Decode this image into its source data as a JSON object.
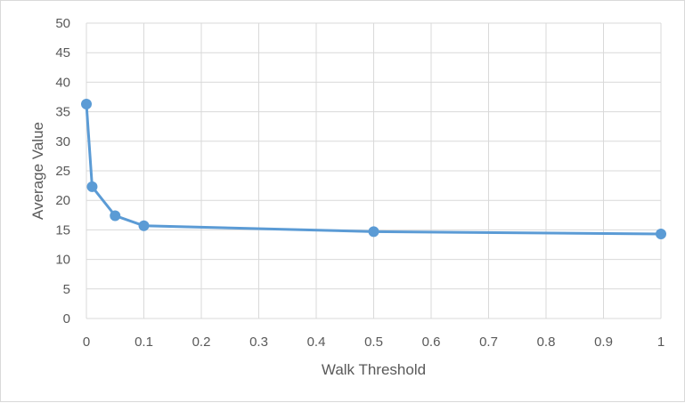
{
  "chart_data": {
    "type": "line",
    "title": "",
    "xlabel": "Walk Threshold",
    "ylabel": "Average Value",
    "xlim": [
      0,
      1
    ],
    "ylim": [
      0,
      50
    ],
    "x_ticks": [
      "0",
      "0.1",
      "0.2",
      "0.3",
      "0.4",
      "0.5",
      "0.6",
      "0.7",
      "0.8",
      "0.9",
      "1"
    ],
    "y_ticks": [
      "0",
      "5",
      "10",
      "15",
      "20",
      "25",
      "30",
      "35",
      "40",
      "45",
      "50"
    ],
    "grid": true,
    "legend": "none",
    "series": [
      {
        "color": "#5b9bd5",
        "points": [
          {
            "x": 0,
            "y": 36.3
          },
          {
            "x": 0.01,
            "y": 22.3
          },
          {
            "x": 0.05,
            "y": 17.4
          },
          {
            "x": 0.1,
            "y": 15.7
          },
          {
            "x": 0.5,
            "y": 14.7
          },
          {
            "x": 1,
            "y": 14.3
          }
        ]
      }
    ]
  }
}
